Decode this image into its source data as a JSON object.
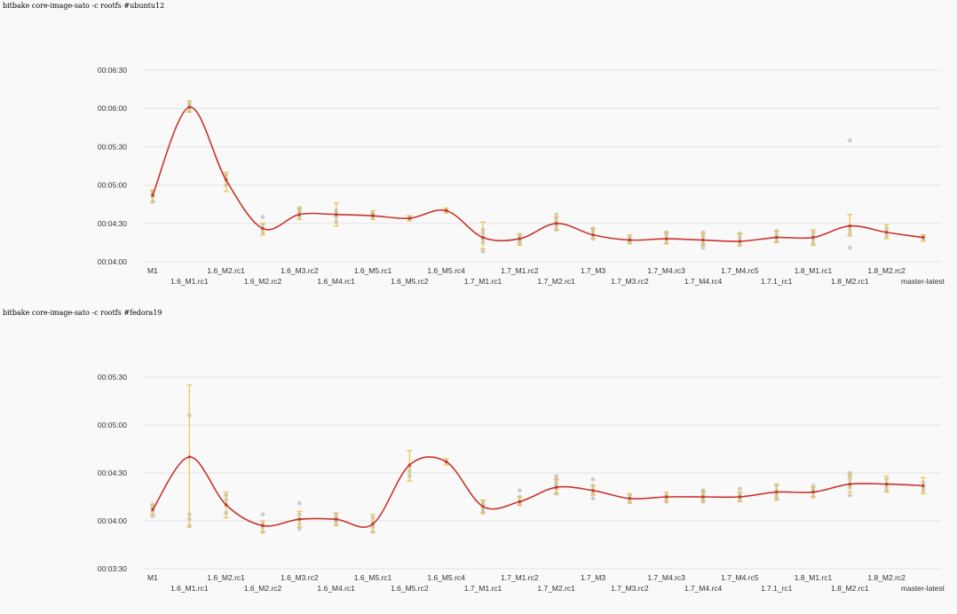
{
  "colors": {
    "line": "#c9342a",
    "error": "#e8c34a",
    "point": "#aaaaaa",
    "grid": "#e4e4e4"
  },
  "chart_data": [
    {
      "type": "line",
      "title": "bitbake core-image-sato -c rootfs #ubuntu12",
      "categories": [
        "M1",
        "1.6_M1.rc1",
        "1.6_M2.rc1",
        "1.6_M2.rc2",
        "1.6_M3.rc2",
        "1.6_M4.rc1",
        "1.6_M5.rc1",
        "1.6_M5.rc2",
        "1.6_M5.rc4",
        "1.7_M1.rc1",
        "1.7_M1.rc2",
        "1.7_M2.rc1",
        "1.7_M3",
        "1.7_M3.rc2",
        "1.7_M4.rc3",
        "1.7_M4.rc4",
        "1.7_M4.rc5",
        "1.7.1_rc1",
        "1.8_M1.rc1",
        "1.8_M2.rc1",
        "1.8_M2.rc2",
        "master-latest"
      ],
      "y_ticks": [
        "00:04:00",
        "00:04:30",
        "00:05:00",
        "00:05:30",
        "00:06:00",
        "00:06:30"
      ],
      "ylim": [
        240,
        390
      ],
      "grid": true,
      "legend": "none",
      "series": [
        {
          "values": [
            292,
            361,
            304,
            266,
            277,
            277,
            276,
            274,
            280,
            259,
            258,
            270,
            261,
            257,
            258,
            257,
            256,
            259,
            259,
            268,
            263,
            259
          ]
        }
      ],
      "error_bars": [
        [
          287,
          296
        ],
        [
          357,
          366
        ],
        [
          295,
          310
        ],
        [
          261,
          270
        ],
        [
          273,
          282
        ],
        [
          268,
          286
        ],
        [
          273,
          280
        ],
        [
          272,
          276
        ],
        [
          278,
          282
        ],
        [
          250,
          271
        ],
        [
          253,
          262
        ],
        [
          265,
          275
        ],
        [
          258,
          266
        ],
        [
          254,
          261
        ],
        [
          254,
          263
        ],
        [
          253,
          262
        ],
        [
          253,
          262
        ],
        [
          255,
          264
        ],
        [
          253,
          265
        ],
        [
          260,
          277
        ],
        [
          258,
          269
        ],
        [
          256,
          261
        ]
      ],
      "points": [
        [
          0,
          287
        ],
        [
          0,
          291
        ],
        [
          0,
          293
        ],
        [
          0,
          295
        ],
        [
          1,
          358
        ],
        [
          1,
          362
        ],
        [
          1,
          364
        ],
        [
          2,
          300
        ],
        [
          2,
          305
        ],
        [
          2,
          308
        ],
        [
          3,
          263
        ],
        [
          3,
          266
        ],
        [
          3,
          269
        ],
        [
          3,
          275
        ],
        [
          4,
          275
        ],
        [
          4,
          278
        ],
        [
          4,
          280
        ],
        [
          4,
          282
        ],
        [
          5,
          271
        ],
        [
          5,
          275
        ],
        [
          5,
          277
        ],
        [
          5,
          280
        ],
        [
          6,
          275
        ],
        [
          6,
          277
        ],
        [
          6,
          278
        ],
        [
          7,
          273
        ],
        [
          7,
          275
        ],
        [
          8,
          280
        ],
        [
          9,
          248
        ],
        [
          9,
          255
        ],
        [
          9,
          258
        ],
        [
          9,
          262
        ],
        [
          9,
          265
        ],
        [
          10,
          254
        ],
        [
          10,
          256
        ],
        [
          10,
          259
        ],
        [
          10,
          261
        ],
        [
          11,
          265
        ],
        [
          11,
          268
        ],
        [
          11,
          271
        ],
        [
          11,
          274
        ],
        [
          11,
          277
        ],
        [
          12,
          258
        ],
        [
          12,
          261
        ],
        [
          12,
          264
        ],
        [
          12,
          266
        ],
        [
          13,
          255
        ],
        [
          13,
          257
        ],
        [
          13,
          259
        ],
        [
          14,
          255
        ],
        [
          14,
          258
        ],
        [
          14,
          261
        ],
        [
          14,
          263
        ],
        [
          15,
          251
        ],
        [
          15,
          254
        ],
        [
          15,
          257
        ],
        [
          15,
          260
        ],
        [
          15,
          263
        ],
        [
          16,
          253
        ],
        [
          16,
          256
        ],
        [
          16,
          259
        ],
        [
          16,
          262
        ],
        [
          17,
          256
        ],
        [
          17,
          259
        ],
        [
          17,
          261
        ],
        [
          17,
          264
        ],
        [
          18,
          254
        ],
        [
          18,
          257
        ],
        [
          18,
          260
        ],
        [
          18,
          263
        ],
        [
          19,
          251
        ],
        [
          19,
          262
        ],
        [
          19,
          265
        ],
        [
          19,
          268
        ],
        [
          19,
          335
        ],
        [
          20,
          260
        ],
        [
          20,
          263
        ],
        [
          20,
          266
        ],
        [
          21,
          258
        ],
        [
          21,
          260
        ]
      ]
    },
    {
      "type": "line",
      "title": "bitbake core-image-sato -c rootfs #fedora19",
      "categories": [
        "M1",
        "1.6_M1.rc1",
        "1.6_M2.rc1",
        "1.6_M2.rc2",
        "1.6_M3.rc2",
        "1.6_M4.rc1",
        "1.6_M5.rc1",
        "1.6_M5.rc2",
        "1.6_M5.rc4",
        "1.7_M1.rc1",
        "1.7_M1.rc2",
        "1.7_M2.rc1",
        "1.7_M3",
        "1.7_M3.rc2",
        "1.7_M4.rc3",
        "1.7_M4.rc4",
        "1.7_M4.rc5",
        "1.7.1_rc1",
        "1.8_M1.rc1",
        "1.8_M2.rc1",
        "1.8_M2.rc2",
        "master-latest"
      ],
      "y_ticks": [
        "00:03:30",
        "00:04:00",
        "00:04:30",
        "00:05:00",
        "00:05:30"
      ],
      "ylim": [
        210,
        330
      ],
      "grid": true,
      "legend": "none",
      "series": [
        {
          "values": [
            247,
            280,
            250,
            237,
            241,
            241,
            238,
            275,
            277,
            249,
            252,
            261,
            259,
            254,
            255,
            255,
            255,
            258,
            258,
            263,
            263,
            262
          ]
        }
      ],
      "error_bars": [
        [
          244,
          250
        ],
        [
          236,
          325
        ],
        [
          242,
          258
        ],
        [
          233,
          240
        ],
        [
          236,
          246
        ],
        [
          237,
          245
        ],
        [
          233,
          244
        ],
        [
          265,
          284
        ],
        [
          275,
          279
        ],
        [
          245,
          253
        ],
        [
          250,
          255
        ],
        [
          257,
          266
        ],
        [
          256,
          262
        ],
        [
          251,
          257
        ],
        [
          252,
          258
        ],
        [
          252,
          258
        ],
        [
          252,
          258
        ],
        [
          253,
          263
        ],
        [
          255,
          261
        ],
        [
          258,
          269
        ],
        [
          258,
          268
        ],
        [
          257,
          267
        ]
      ],
      "points": [
        [
          0,
          243
        ],
        [
          0,
          246
        ],
        [
          0,
          248
        ],
        [
          0,
          250
        ],
        [
          1,
          237
        ],
        [
          1,
          241
        ],
        [
          1,
          244
        ],
        [
          1,
          306
        ],
        [
          2,
          245
        ],
        [
          2,
          250
        ],
        [
          2,
          253
        ],
        [
          2,
          256
        ],
        [
          3,
          233
        ],
        [
          3,
          236
        ],
        [
          3,
          238
        ],
        [
          3,
          244
        ],
        [
          4,
          235
        ],
        [
          4,
          238
        ],
        [
          4,
          241
        ],
        [
          4,
          244
        ],
        [
          4,
          251
        ],
        [
          5,
          238
        ],
        [
          5,
          240
        ],
        [
          5,
          242
        ],
        [
          5,
          244
        ],
        [
          6,
          233
        ],
        [
          6,
          236
        ],
        [
          6,
          239
        ],
        [
          6,
          242
        ],
        [
          7,
          268
        ],
        [
          7,
          271
        ],
        [
          7,
          274
        ],
        [
          8,
          277
        ],
        [
          9,
          245
        ],
        [
          9,
          247
        ],
        [
          9,
          250
        ],
        [
          9,
          252
        ],
        [
          10,
          250
        ],
        [
          10,
          252
        ],
        [
          10,
          255
        ],
        [
          10,
          259
        ],
        [
          11,
          257
        ],
        [
          11,
          260
        ],
        [
          11,
          262
        ],
        [
          11,
          264
        ],
        [
          11,
          266
        ],
        [
          11,
          268
        ],
        [
          12,
          254
        ],
        [
          12,
          257
        ],
        [
          12,
          259
        ],
        [
          12,
          262
        ],
        [
          12,
          266
        ],
        [
          13,
          252
        ],
        [
          13,
          254
        ],
        [
          13,
          256
        ],
        [
          14,
          252
        ],
        [
          14,
          254
        ],
        [
          14,
          256
        ],
        [
          15,
          252
        ],
        [
          15,
          254
        ],
        [
          15,
          256
        ],
        [
          15,
          258
        ],
        [
          15,
          259
        ],
        [
          16,
          253
        ],
        [
          16,
          255
        ],
        [
          16,
          257
        ],
        [
          16,
          260
        ],
        [
          17,
          254
        ],
        [
          17,
          256
        ],
        [
          17,
          259
        ],
        [
          17,
          262
        ],
        [
          18,
          255
        ],
        [
          18,
          258
        ],
        [
          18,
          260
        ],
        [
          18,
          262
        ],
        [
          19,
          256
        ],
        [
          19,
          261
        ],
        [
          19,
          263
        ],
        [
          19,
          266
        ],
        [
          19,
          268
        ],
        [
          19,
          270
        ],
        [
          20,
          259
        ],
        [
          20,
          261
        ],
        [
          20,
          263
        ],
        [
          20,
          266
        ],
        [
          21,
          259
        ],
        [
          21,
          261
        ],
        [
          21,
          264
        ]
      ]
    }
  ]
}
